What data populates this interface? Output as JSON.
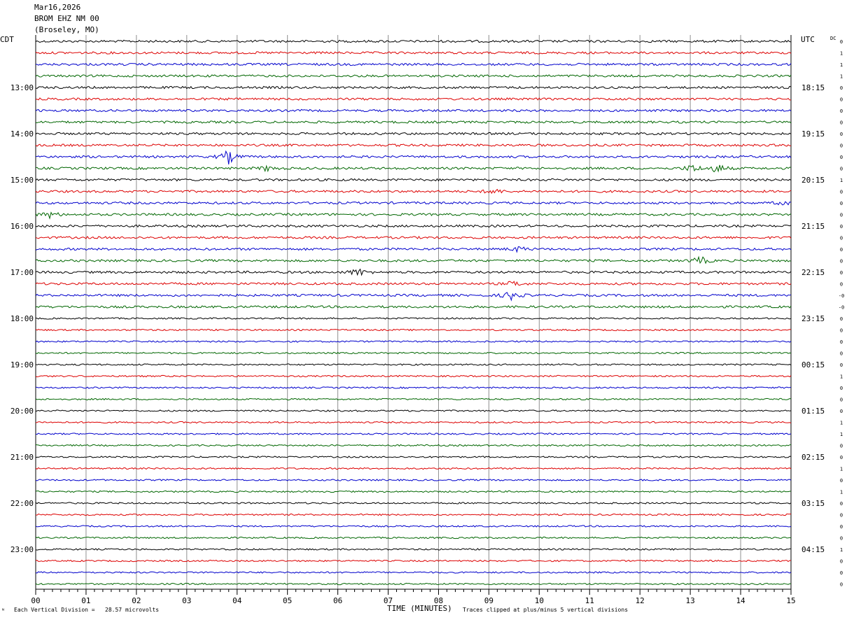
{
  "header": {
    "date": "Mar16,2026",
    "station": "BROM EHZ NM 00",
    "location": "(Broseley, MO)"
  },
  "timezones": {
    "left": "CDT",
    "right": "UTC",
    "dc_label": "DC"
  },
  "footer": {
    "scale_text": "Each Vertical Division =   28.57 microvolts",
    "xlabel": "TIME (MINUTES)",
    "clip_text": "Traces clipped at plus/minus 5 vertical divisions",
    "corner_mark": "ᴺ"
  },
  "colors": {
    "trace_cycle": [
      "#000000",
      "#dd0000",
      "#0000cc",
      "#006600"
    ],
    "grid": "#909090"
  },
  "chart_data": {
    "type": "line",
    "title": "BROM EHZ NM 00",
    "xlabel": "TIME (MINUTES)",
    "xlim": [
      0,
      15
    ],
    "x_ticks": [
      "00",
      "01",
      "02",
      "03",
      "04",
      "05",
      "06",
      "07",
      "08",
      "09",
      "10",
      "11",
      "12",
      "13",
      "14",
      "15"
    ],
    "trace_minutes": 15,
    "trace_count": 48,
    "left_hour_labels": [
      "13:00",
      "14:00",
      "15:00",
      "16:00",
      "17:00",
      "18:00",
      "19:00",
      "20:00",
      "21:00",
      "22:00",
      "23:00"
    ],
    "right_hour_labels": [
      "18:15",
      "19:15",
      "20:15",
      "21:15",
      "22:15",
      "23:15",
      "00:15",
      "01:15",
      "02:15",
      "03:15",
      "04:15"
    ],
    "dc_offsets": [
      "0",
      "1",
      "1",
      "1",
      "0",
      "0",
      "0",
      "0",
      "0",
      "0",
      "0",
      "0",
      "1",
      "0",
      "0",
      "0",
      "0",
      "0",
      "0",
      "0",
      "0",
      "0",
      "-0",
      "-0",
      "0",
      "0",
      "0",
      "0",
      "0",
      "1",
      "0",
      "0",
      "0",
      "1",
      "1",
      "0",
      "0",
      "1",
      "0",
      "1",
      "0",
      "0",
      "0",
      "0",
      "1",
      "0",
      "0",
      "0"
    ],
    "amplitude_scale_microvolts_per_division": 28.57,
    "clip_divisions": 5,
    "events": [
      {
        "trace": 10,
        "minute": 3.83,
        "amp": 10
      },
      {
        "trace": 11,
        "minute": 4.6,
        "amp": 4
      },
      {
        "trace": 11,
        "minute": 13.05,
        "amp": 6
      },
      {
        "trace": 11,
        "minute": 13.55,
        "amp": 7
      },
      {
        "trace": 13,
        "minute": 9.1,
        "amp": 4
      },
      {
        "trace": 14,
        "minute": 14.9,
        "amp": 4
      },
      {
        "trace": 15,
        "minute": 0.3,
        "amp": 5
      },
      {
        "trace": 18,
        "minute": 9.6,
        "amp": 4
      },
      {
        "trace": 19,
        "minute": 13.2,
        "amp": 6
      },
      {
        "trace": 20,
        "minute": 6.4,
        "amp": 6
      },
      {
        "trace": 21,
        "minute": 9.5,
        "amp": 4
      },
      {
        "trace": 22,
        "minute": 9.45,
        "amp": 7
      }
    ]
  }
}
